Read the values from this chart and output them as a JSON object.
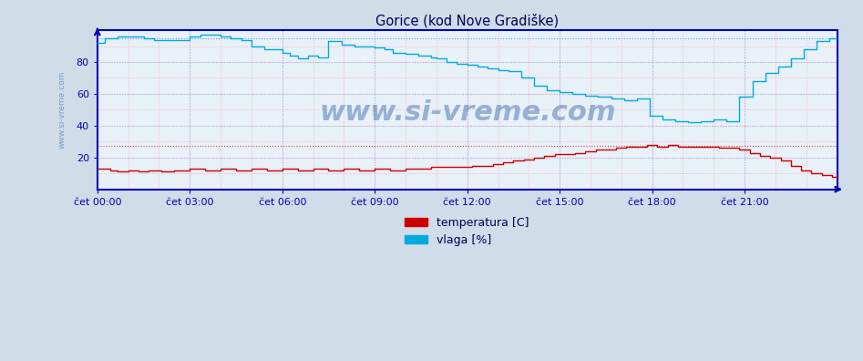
{
  "title": "Gorice (kod Nove Gradiške)",
  "xlabel_ticks": [
    "čet 00:00",
    "čet 03:00",
    "čet 06:00",
    "čet 09:00",
    "čet 12:00",
    "čet 15:00",
    "čet 18:00",
    "čet 21:00"
  ],
  "ylabel_ticks": [
    20,
    40,
    60,
    80
  ],
  "ylim": [
    0,
    100
  ],
  "xlim": [
    0,
    288
  ],
  "bg_color": "#e8f0f8",
  "grid_color_major": "#b0b0dd",
  "grid_color_minor": "#f0b0b0",
  "temp_color": "#cc0000",
  "vlaga_color": "#00aadd",
  "temp_max_line_color": "#dd4444",
  "vlaga_max_line_color": "#44aadd",
  "border_color": "#0000bb",
  "title_color": "#000055",
  "tick_color": "#0000bb",
  "watermark_color": "#3366aa",
  "watermark_side_color": "#5588bb",
  "watermark_text": "www.si-vreme.com",
  "legend_temp": "temperatura [C]",
  "legend_vlaga": "vlaga [%]",
  "figure_bg": "#d0dce8",
  "temp_max": 27.5,
  "vlaga_max": 95,
  "vlaga_breakpoints": [
    0,
    3,
    8,
    18,
    22,
    36,
    40,
    48,
    52,
    56,
    60,
    65,
    72,
    75,
    78,
    82,
    86,
    90,
    95,
    100,
    108,
    112,
    115,
    120,
    125,
    130,
    132,
    136,
    140,
    144,
    148,
    152,
    156,
    160,
    165,
    170,
    175,
    180,
    185,
    190,
    195,
    200,
    205,
    210,
    215,
    220,
    225,
    230,
    235,
    240,
    245,
    250,
    255,
    260,
    265,
    270,
    275,
    280,
    285,
    288
  ],
  "vlaga_values": [
    92,
    95,
    96,
    95,
    94,
    96,
    97,
    96,
    95,
    94,
    90,
    88,
    86,
    84,
    82,
    84,
    83,
    93,
    91,
    90,
    89,
    88,
    86,
    85,
    84,
    83,
    82,
    80,
    79,
    78,
    77,
    76,
    75,
    74,
    70,
    65,
    62,
    61,
    60,
    59,
    58,
    57,
    56,
    57,
    46,
    44,
    43,
    42,
    43,
    44,
    43,
    58,
    68,
    73,
    77,
    82,
    88,
    93,
    95,
    95
  ],
  "temp_breakpoints": [
    0,
    5,
    8,
    12,
    16,
    20,
    25,
    30,
    36,
    42,
    48,
    54,
    60,
    66,
    72,
    78,
    84,
    90,
    96,
    102,
    108,
    114,
    120,
    126,
    130,
    134,
    138,
    142,
    146,
    150,
    154,
    158,
    162,
    166,
    170,
    174,
    178,
    182,
    186,
    190,
    194,
    198,
    202,
    206,
    210,
    214,
    218,
    222,
    226,
    230,
    234,
    238,
    242,
    246,
    250,
    254,
    258,
    262,
    266,
    270,
    274,
    278,
    282,
    286,
    288
  ],
  "temp_values": [
    13,
    12,
    11,
    12,
    11,
    12,
    11,
    12,
    13,
    12,
    13,
    12,
    13,
    12,
    13,
    12,
    13,
    12,
    13,
    12,
    13,
    12,
    13,
    13,
    14,
    14,
    14,
    14,
    15,
    15,
    16,
    17,
    18,
    19,
    20,
    21,
    22,
    22,
    23,
    24,
    25,
    25,
    26,
    27,
    27,
    28,
    27,
    28,
    27,
    27,
    27,
    27,
    26,
    26,
    25,
    23,
    21,
    20,
    18,
    15,
    12,
    10,
    9,
    8,
    7
  ]
}
